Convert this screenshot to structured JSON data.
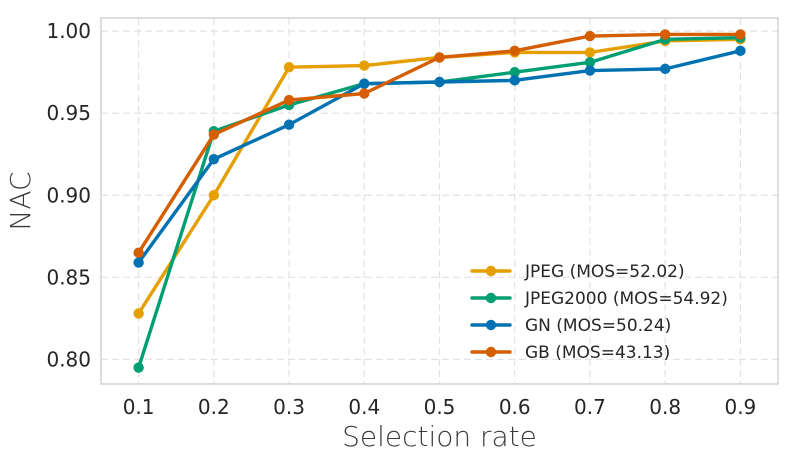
{
  "chart_data": {
    "type": "line",
    "title": "",
    "xlabel": "Selection rate",
    "ylabel": "NAC",
    "x": [
      0.1,
      0.2,
      0.3,
      0.4,
      0.5,
      0.6,
      0.7,
      0.8,
      0.9
    ],
    "x_tick_labels": [
      "0.1",
      "0.2",
      "0.3",
      "0.4",
      "0.5",
      "0.6",
      "0.7",
      "0.8",
      "0.9"
    ],
    "y_ticks": [
      0.8,
      0.85,
      0.9,
      0.95,
      1.0
    ],
    "y_tick_labels": [
      "0.80",
      "0.85",
      "0.90",
      "0.95",
      "1.00"
    ],
    "xlim": [
      0.05,
      0.95
    ],
    "ylim": [
      0.785,
      1.008
    ],
    "grid": true,
    "legend_position": "lower-right",
    "series": [
      {
        "name": "JPEG (MOS=52.02)",
        "color": "#E69F00",
        "values": [
          0.828,
          0.9,
          0.978,
          0.979,
          0.984,
          0.987,
          0.987,
          0.994,
          0.995
        ]
      },
      {
        "name": "JPEG2000 (MOS=54.92)",
        "color": "#009E73",
        "values": [
          0.795,
          0.939,
          0.955,
          0.968,
          0.969,
          0.975,
          0.981,
          0.995,
          0.996
        ]
      },
      {
        "name": "GN (MOS=50.24)",
        "color": "#0072B2",
        "values": [
          0.859,
          0.922,
          0.943,
          0.968,
          0.969,
          0.97,
          0.976,
          0.977,
          0.988
        ]
      },
      {
        "name": "GB (MOS=43.13)",
        "color": "#D55E00",
        "values": [
          0.865,
          0.937,
          0.958,
          0.962,
          0.984,
          0.988,
          0.997,
          0.998,
          0.998
        ]
      }
    ]
  }
}
